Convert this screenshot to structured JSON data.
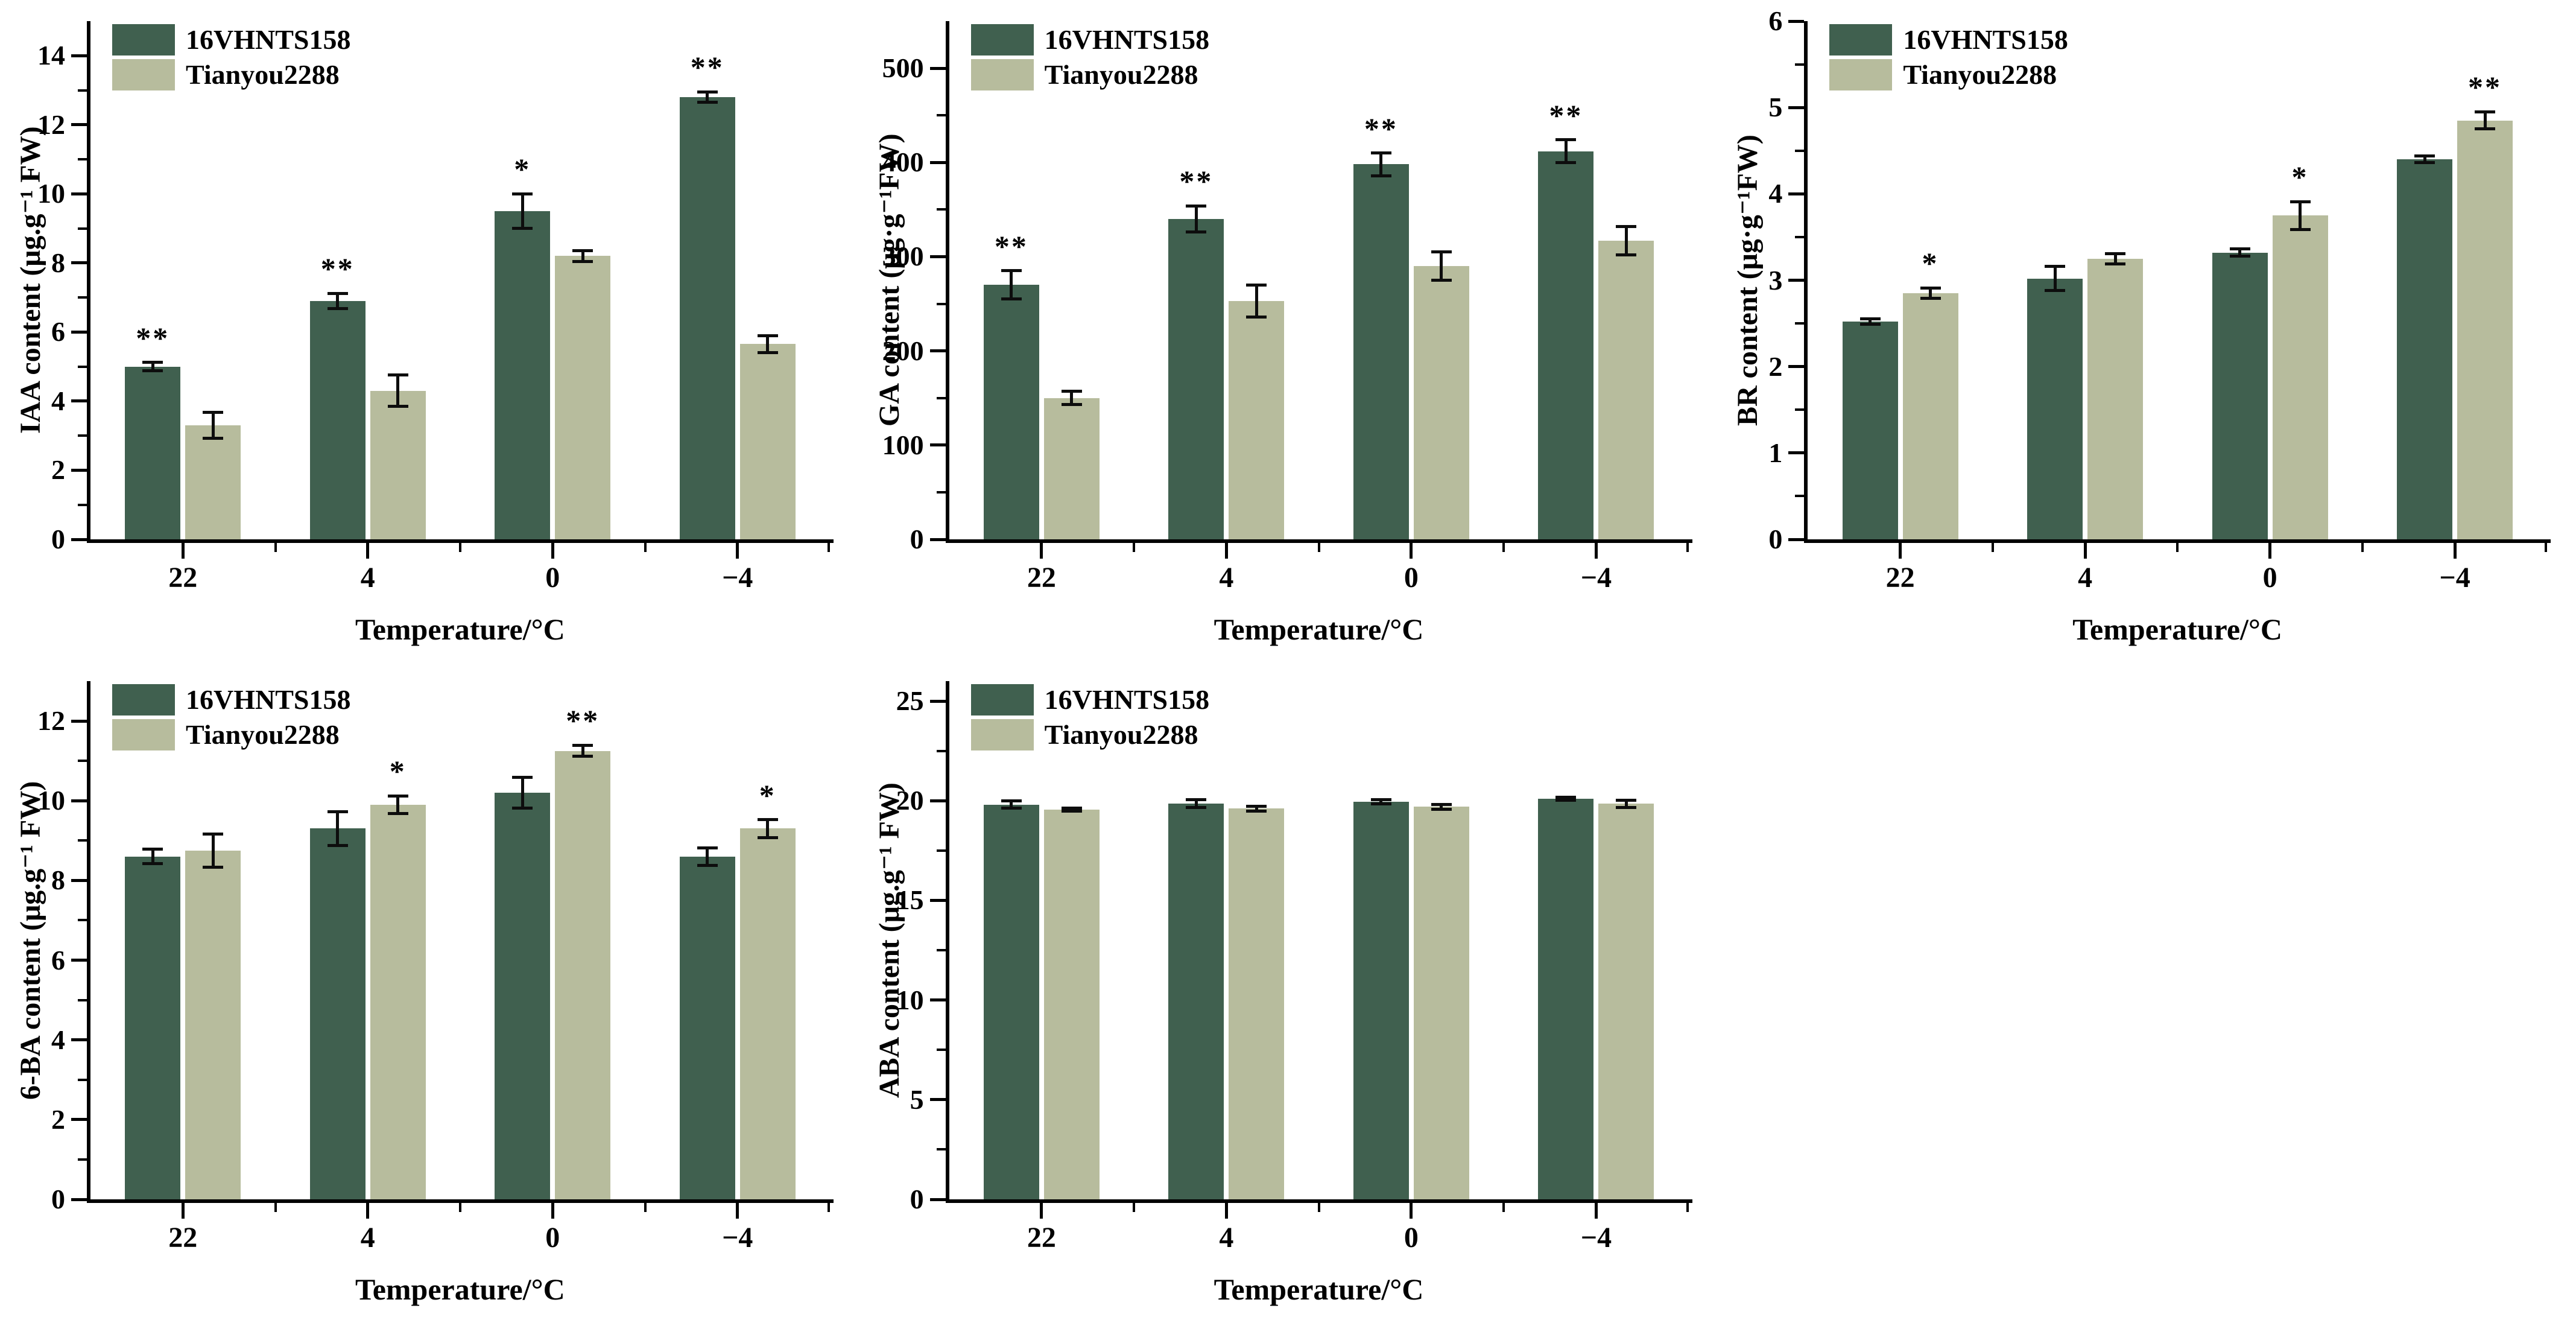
{
  "figure": {
    "background": "#ffffff",
    "text_color": "#000000",
    "axis_color": "#000000",
    "series_colors": {
      "series1": "#40604f",
      "series2": "#b7bc9d"
    },
    "legend": {
      "series1": "16VHNTS158",
      "series2": "Tianyou2288"
    },
    "xlabel": "Temperature/°C",
    "categories": [
      "22",
      "4",
      "0",
      "−4"
    ]
  },
  "chart_data": [
    {
      "type": "bar",
      "name": "IAA",
      "title": "",
      "ylabel": "IAA content (μg.g⁻¹ FW)",
      "xlabel": "Temperature/°C",
      "categories": [
        "22",
        "4",
        "0",
        "−4"
      ],
      "ylim": [
        0,
        15
      ],
      "yticks": [
        0,
        2,
        4,
        6,
        8,
        10,
        12,
        14
      ],
      "y_minor_step": 1,
      "grid": false,
      "legend_position": "top-left",
      "series": [
        {
          "name": "16VHNTS158",
          "color": "#40604f",
          "values": [
            5.0,
            6.9,
            9.5,
            12.8
          ],
          "errors": [
            0.12,
            0.22,
            0.5,
            0.15
          ],
          "sig": [
            "**",
            "**",
            "*",
            "**"
          ]
        },
        {
          "name": "Tianyou2288",
          "color": "#b7bc9d",
          "values": [
            3.3,
            4.3,
            8.2,
            5.65
          ],
          "errors": [
            0.38,
            0.45,
            0.15,
            0.25
          ],
          "sig": [
            null,
            null,
            null,
            null
          ]
        }
      ]
    },
    {
      "type": "bar",
      "name": "GA",
      "title": "",
      "ylabel": "GA content (μg·g⁻¹FW)",
      "xlabel": "Temperature/°C",
      "categories": [
        "22",
        "4",
        "0",
        "−4"
      ],
      "ylim": [
        0,
        550
      ],
      "yticks": [
        0,
        100,
        200,
        300,
        400,
        500
      ],
      "y_minor_step": 50,
      "grid": false,
      "legend_position": "top-left",
      "series": [
        {
          "name": "16VHNTS158",
          "color": "#40604f",
          "values": [
            270,
            340,
            398,
            412
          ],
          "errors": [
            15,
            14,
            12,
            12
          ],
          "sig": [
            "**",
            "**",
            "**",
            "**"
          ]
        },
        {
          "name": "Tianyou2288",
          "color": "#b7bc9d",
          "values": [
            150,
            253,
            290,
            317
          ],
          "errors": [
            7,
            17,
            15,
            15
          ],
          "sig": [
            null,
            null,
            null,
            null
          ]
        }
      ]
    },
    {
      "type": "bar",
      "name": "BR",
      "title": "",
      "ylabel": "BR content (μg·g⁻¹FW)",
      "xlabel": "Temperature/°C",
      "categories": [
        "22",
        "4",
        "0",
        "−4"
      ],
      "ylim": [
        0,
        6
      ],
      "yticks": [
        0,
        1,
        2,
        3,
        4,
        5,
        6
      ],
      "y_minor_step": 0.5,
      "grid": false,
      "legend_position": "top-left",
      "series": [
        {
          "name": "16VHNTS158",
          "color": "#40604f",
          "values": [
            2.52,
            3.02,
            3.32,
            4.4
          ],
          "errors": [
            0.03,
            0.14,
            0.04,
            0.04
          ],
          "sig": [
            null,
            null,
            null,
            null
          ]
        },
        {
          "name": "Tianyou2288",
          "color": "#b7bc9d",
          "values": [
            2.85,
            3.25,
            3.75,
            4.85
          ],
          "errors": [
            0.06,
            0.06,
            0.16,
            0.1
          ],
          "sig": [
            "*",
            null,
            "*",
            "**"
          ]
        }
      ]
    },
    {
      "type": "bar",
      "name": "6-BA",
      "title": "",
      "ylabel": "6-BA content (μg.g⁻¹ FW)",
      "xlabel": "Temperature/°C",
      "categories": [
        "22",
        "4",
        "0",
        "−4"
      ],
      "ylim": [
        0,
        13
      ],
      "yticks": [
        0,
        2,
        4,
        6,
        8,
        10,
        12
      ],
      "y_minor_step": 1,
      "grid": false,
      "legend_position": "top-left",
      "series": [
        {
          "name": "16VHNTS158",
          "color": "#40604f",
          "values": [
            8.6,
            9.3,
            10.2,
            8.6
          ],
          "errors": [
            0.18,
            0.42,
            0.38,
            0.22
          ],
          "sig": [
            null,
            null,
            null,
            null
          ]
        },
        {
          "name": "Tianyou2288",
          "color": "#b7bc9d",
          "values": [
            8.75,
            9.9,
            11.25,
            9.3
          ],
          "errors": [
            0.42,
            0.22,
            0.14,
            0.22
          ],
          "sig": [
            null,
            "*",
            "**",
            "*"
          ]
        }
      ]
    },
    {
      "type": "bar",
      "name": "ABA",
      "title": "",
      "ylabel": "ABA content (μg.g⁻¹ FW)",
      "xlabel": "Temperature/°C",
      "categories": [
        "22",
        "4",
        "0",
        "−4"
      ],
      "ylim": [
        0,
        26
      ],
      "yticks": [
        0,
        5,
        10,
        15,
        20,
        25
      ],
      "y_minor_step": 2.5,
      "grid": false,
      "legend_position": "top-left",
      "series": [
        {
          "name": "16VHNTS158",
          "color": "#40604f",
          "values": [
            19.8,
            19.85,
            19.95,
            20.1
          ],
          "errors": [
            0.18,
            0.2,
            0.1,
            0.07
          ],
          "sig": [
            null,
            null,
            null,
            null
          ]
        },
        {
          "name": "Tianyou2288",
          "color": "#b7bc9d",
          "values": [
            19.55,
            19.6,
            19.7,
            19.85
          ],
          "errors": [
            0.08,
            0.12,
            0.12,
            0.18
          ],
          "sig": [
            null,
            null,
            null,
            null
          ]
        }
      ]
    }
  ]
}
